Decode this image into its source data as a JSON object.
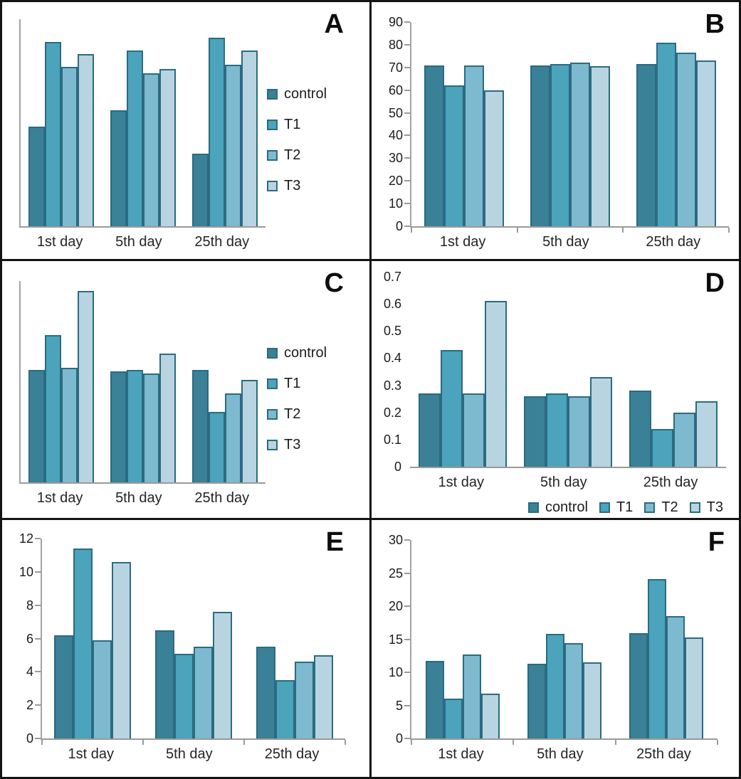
{
  "figure": {
    "description": "Six-panel grouped bar chart figure, panels labeled A to F, comparing control, T1, T2, T3 across 1st, 5th and 25th day",
    "categories": [
      "1st day",
      "5th day",
      "25th day"
    ],
    "legend_labels": [
      "control",
      "T1",
      "T2",
      "T3"
    ]
  },
  "colors": {
    "control": "#3a8097",
    "T1": "#4ba3bc",
    "T2": "#7db9cf",
    "T3": "#b9d4e1",
    "bar_border": "#2b6b81",
    "axis": "#9a9a9a",
    "text": "#242424"
  },
  "chart_data": [
    {
      "panel_label": "A",
      "type": "bar",
      "categories": [
        "1st day",
        "5th day",
        "25th day"
      ],
      "series": [
        {
          "name": "control",
          "values": [
            0.48,
            0.56,
            0.35
          ]
        },
        {
          "name": "T1",
          "values": [
            0.89,
            0.85,
            0.91
          ]
        },
        {
          "name": "T2",
          "values": [
            0.77,
            0.74,
            0.78
          ]
        },
        {
          "name": "T3",
          "values": [
            0.83,
            0.76,
            0.85
          ]
        }
      ],
      "title": "",
      "xlabel": "",
      "ylabel": "",
      "ylim": [
        0,
        1
      ],
      "y_ticks": [],
      "values_note": "y-axis unlabeled in source; values are relative bar heights (fraction of axis height)",
      "legend_position": "right",
      "grid": false,
      "y_axis_line": true,
      "y_tick_marks": false,
      "x_tick_marks": false
    },
    {
      "panel_label": "B",
      "type": "bar",
      "categories": [
        "1st day",
        "5th day",
        "25th day"
      ],
      "series": [
        {
          "name": "control",
          "values": [
            71,
            71,
            71.5
          ]
        },
        {
          "name": "T1",
          "values": [
            62,
            71.5,
            81
          ]
        },
        {
          "name": "T2",
          "values": [
            71,
            72,
            76.5
          ]
        },
        {
          "name": "T3",
          "values": [
            60,
            70.5,
            73
          ]
        }
      ],
      "title": "",
      "xlabel": "",
      "ylabel": "",
      "ylim": [
        0,
        90
      ],
      "y_ticks": [
        "0",
        "10",
        "20",
        "30",
        "40",
        "50",
        "60",
        "70",
        "80",
        "90"
      ],
      "legend_position": "none",
      "grid": false,
      "y_axis_line": true,
      "y_tick_marks": true,
      "x_tick_marks": true
    },
    {
      "panel_label": "C",
      "type": "bar",
      "categories": [
        "1st day",
        "5th day",
        "25th day"
      ],
      "series": [
        {
          "name": "control",
          "values": [
            0.56,
            0.55,
            0.56
          ]
        },
        {
          "name": "T1",
          "values": [
            0.73,
            0.56,
            0.35
          ]
        },
        {
          "name": "T2",
          "values": [
            0.57,
            0.54,
            0.44
          ]
        },
        {
          "name": "T3",
          "values": [
            0.95,
            0.64,
            0.51
          ]
        }
      ],
      "title": "",
      "xlabel": "",
      "ylabel": "",
      "ylim": [
        0,
        1
      ],
      "y_ticks": [],
      "values_note": "y-axis unlabeled in source; values are relative bar heights (fraction of axis height)",
      "legend_position": "right",
      "grid": false,
      "y_axis_line": true,
      "y_tick_marks": false,
      "x_tick_marks": false
    },
    {
      "panel_label": "D",
      "type": "bar",
      "categories": [
        "1st day",
        "5th day",
        "25th day"
      ],
      "series": [
        {
          "name": "control",
          "values": [
            0.27,
            0.26,
            0.28
          ]
        },
        {
          "name": "T1",
          "values": [
            0.43,
            0.27,
            0.14
          ]
        },
        {
          "name": "T2",
          "values": [
            0.27,
            0.26,
            0.2
          ]
        },
        {
          "name": "T3",
          "values": [
            0.61,
            0.33,
            0.24
          ]
        }
      ],
      "title": "",
      "xlabel": "",
      "ylabel": "",
      "ylim": [
        0,
        0.7
      ],
      "y_ticks": [
        "0",
        "0.1",
        "0.2",
        "0.3",
        "0.4",
        "0.5",
        "0.6",
        "0.7"
      ],
      "legend_position": "bottom",
      "grid": false,
      "y_axis_line": false,
      "y_tick_marks": false,
      "x_tick_marks": false
    },
    {
      "panel_label": "E",
      "type": "bar",
      "categories": [
        "1st day",
        "5th day",
        "25th day"
      ],
      "series": [
        {
          "name": "control",
          "values": [
            6.2,
            6.5,
            5.5
          ]
        },
        {
          "name": "T1",
          "values": [
            11.4,
            5.1,
            3.5
          ]
        },
        {
          "name": "T2",
          "values": [
            5.9,
            5.5,
            4.6
          ]
        },
        {
          "name": "T3",
          "values": [
            10.6,
            7.6,
            5.0
          ]
        }
      ],
      "title": "",
      "xlabel": "",
      "ylabel": "",
      "ylim": [
        0,
        12
      ],
      "y_ticks": [
        "0",
        "2",
        "4",
        "6",
        "8",
        "10",
        "12"
      ],
      "legend_position": "none",
      "grid": false,
      "y_axis_line": true,
      "y_tick_marks": true,
      "x_tick_marks": true
    },
    {
      "panel_label": "F",
      "type": "bar",
      "categories": [
        "1st day",
        "5th day",
        "25th day"
      ],
      "series": [
        {
          "name": "control",
          "values": [
            11.7,
            11.3,
            15.9
          ]
        },
        {
          "name": "T1",
          "values": [
            6.0,
            15.8,
            24.1
          ]
        },
        {
          "name": "T2",
          "values": [
            12.7,
            14.4,
            18.5
          ]
        },
        {
          "name": "T3",
          "values": [
            6.8,
            11.5,
            15.3
          ]
        }
      ],
      "title": "",
      "xlabel": "",
      "ylabel": "",
      "ylim": [
        0,
        30
      ],
      "y_ticks": [
        "0",
        "5",
        "10",
        "15",
        "20",
        "25",
        "30"
      ],
      "legend_position": "none",
      "grid": false,
      "y_axis_line": true,
      "y_tick_marks": true,
      "x_tick_marks": true
    }
  ]
}
